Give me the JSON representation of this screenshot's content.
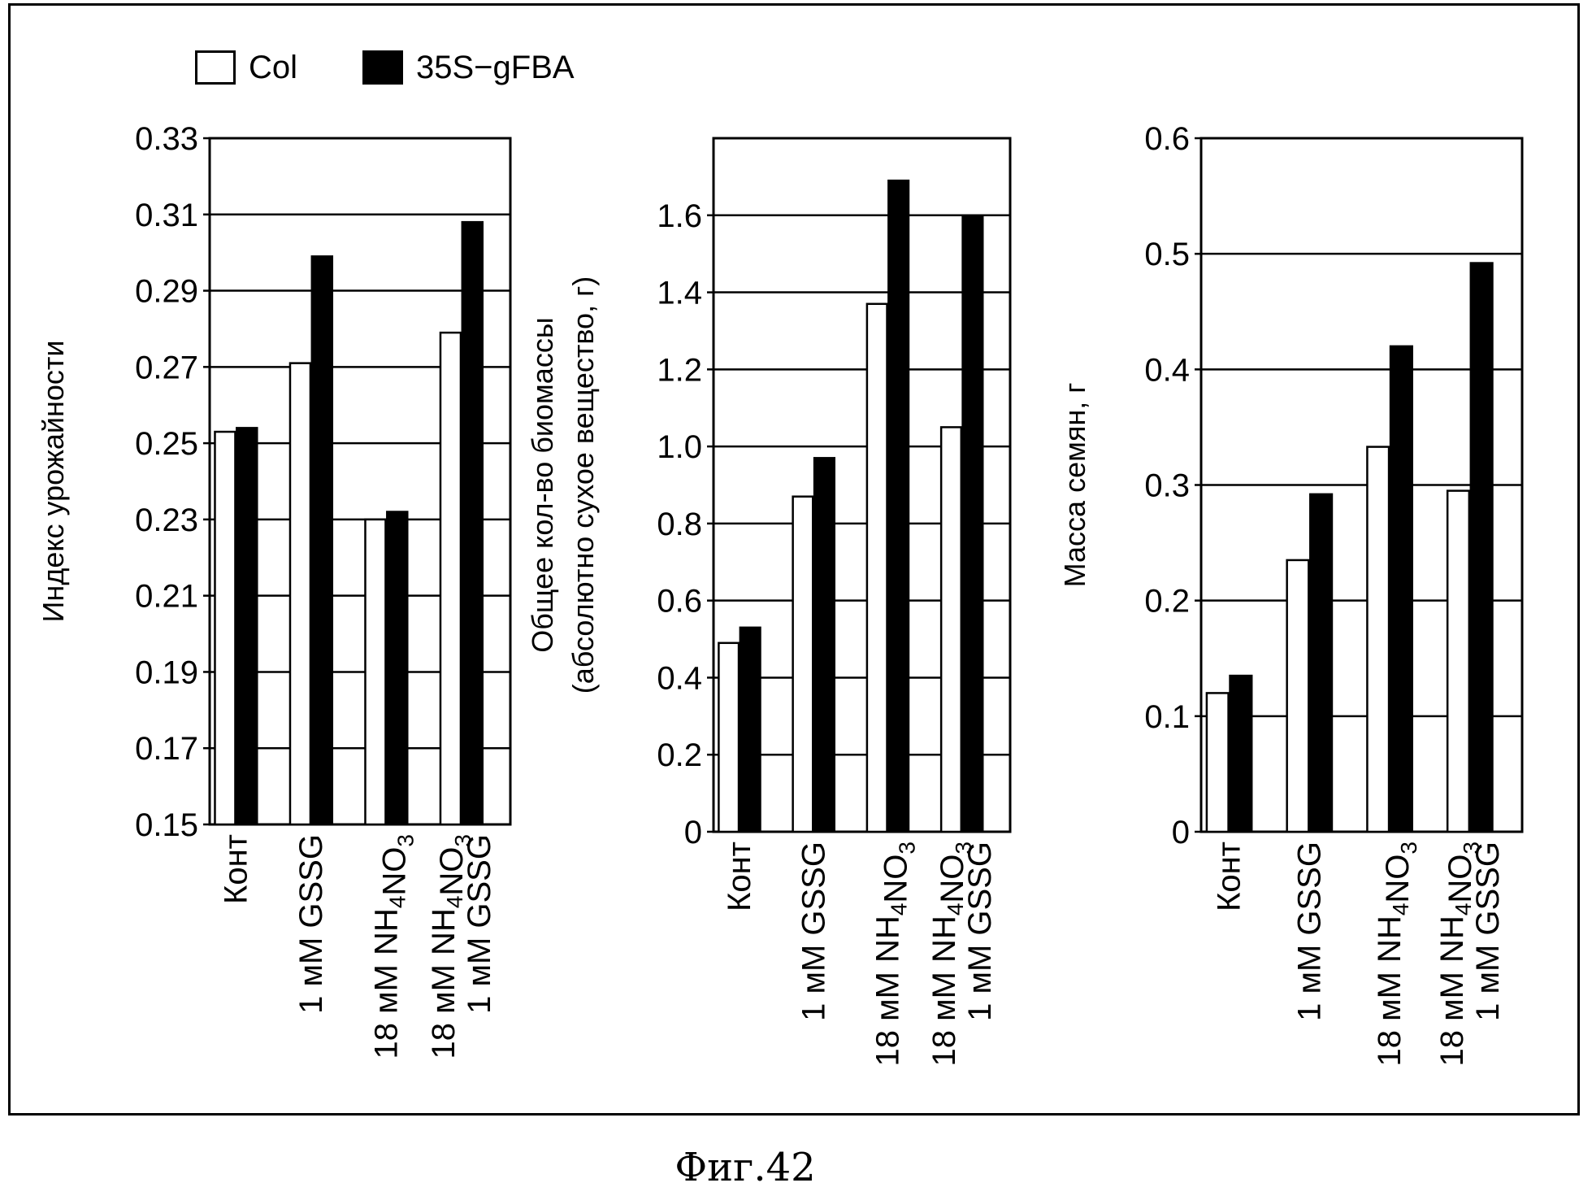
{
  "legend": {
    "items": [
      {
        "label": "Col",
        "color": "#ffffff"
      },
      {
        "label": "35S−gFBA",
        "color": "#000000"
      }
    ]
  },
  "caption": "Фиг.42",
  "chart_data": [
    {
      "type": "bar",
      "ylabel": [
        "Индекс урожайности"
      ],
      "categories": [
        [
          "Конт"
        ],
        [
          "1 мМ GSSG"
        ],
        [
          "18 мМ NH4NO3"
        ],
        [
          "18 мМ NH4NO3",
          "1 мМ GSSG"
        ]
      ],
      "ylim": [
        0.15,
        0.33
      ],
      "yticks": [
        "0.15",
        "0.17",
        "0.19",
        "0.21",
        "0.23",
        "0.25",
        "0.27",
        "0.29",
        "0.31",
        "0.33"
      ],
      "grid": true,
      "series": [
        {
          "name": "Col",
          "color": "#ffffff",
          "values": [
            0.253,
            0.271,
            0.23,
            0.279
          ]
        },
        {
          "name": "35S−gFBA",
          "color": "#000000",
          "values": [
            0.254,
            0.299,
            0.232,
            0.308
          ]
        }
      ]
    },
    {
      "type": "bar",
      "ylabel": [
        "Общее кол-во биомассы",
        "(абсолютно сухое вещество, г)"
      ],
      "categories": [
        [
          "Конт"
        ],
        [
          "1 мМ GSSG"
        ],
        [
          "18 мМ NH4NO3"
        ],
        [
          "18 мМ NH4NO3",
          "1 мМ GSSG"
        ]
      ],
      "ylim": [
        0,
        1.8
      ],
      "yticks": [
        "0",
        "0.2",
        "0.4",
        "0.6",
        "0.8",
        "1.0",
        "1.2",
        "1.4",
        "1.6"
      ],
      "grid": true,
      "series": [
        {
          "name": "Col",
          "color": "#ffffff",
          "values": [
            0.49,
            0.87,
            1.37,
            1.05
          ]
        },
        {
          "name": "35S−gFBA",
          "color": "#000000",
          "values": [
            0.53,
            0.97,
            1.69,
            1.6
          ]
        }
      ]
    },
    {
      "type": "bar",
      "ylabel": [
        "Масса семян, г"
      ],
      "categories": [
        [
          "Конт"
        ],
        [
          "1 мМ GSSG"
        ],
        [
          "18 мМ NH4NO3"
        ],
        [
          "18 мМ NH4NO3",
          "1 мМ GSSG"
        ]
      ],
      "ylim": [
        0,
        0.6
      ],
      "yticks": [
        "0",
        "0.1",
        "0.2",
        "0.3",
        "0.4",
        "0.5",
        "0.6"
      ],
      "grid": true,
      "series": [
        {
          "name": "Col",
          "color": "#ffffff",
          "values": [
            0.12,
            0.235,
            0.333,
            0.295
          ]
        },
        {
          "name": "35S−gFBA",
          "color": "#000000",
          "values": [
            0.135,
            0.292,
            0.42,
            0.492
          ]
        }
      ]
    }
  ]
}
